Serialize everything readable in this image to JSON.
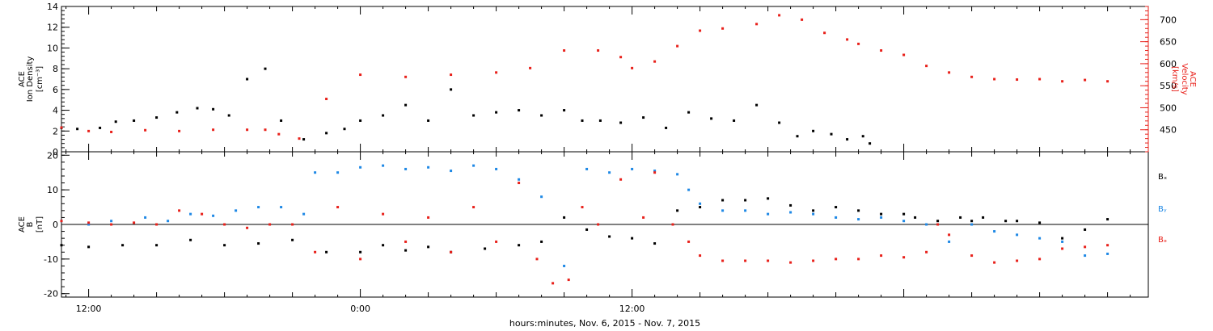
{
  "colors": {
    "black": "#000000",
    "red": "#e8201a",
    "blue": "#1e88e5"
  },
  "x_axis": {
    "caption": "hours:minutes, Nov.  6, 2015 - Nov.  7, 2015",
    "tick_labels": [
      "12:00",
      "0:00",
      "12:00"
    ]
  },
  "chart_data": [
    {
      "type": "scatter",
      "x_unit": "hours from 2015-11-06 00:00",
      "xlim": [
        10.8,
        58.8
      ],
      "left_axis": {
        "label_lines": [
          "ACE",
          "Ion Density",
          "[cm⁻³]"
        ],
        "ylim": [
          0,
          14
        ],
        "ticks": [
          0,
          2,
          4,
          6,
          8,
          10,
          12,
          14
        ]
      },
      "right_axis": {
        "label_lines": [
          "ACE",
          "Velocity",
          "[km/s]"
        ],
        "ylim": [
          400,
          730
        ],
        "ticks": [
          450,
          500,
          550,
          600,
          650,
          700
        ]
      },
      "series": [
        {
          "name": "Ion Density",
          "axis": "left",
          "color": "#000000",
          "points": [
            [
              10.8,
              2.3
            ],
            [
              11.5,
              2.2
            ],
            [
              12.5,
              2.3
            ],
            [
              13.2,
              2.9
            ],
            [
              14.0,
              3.0
            ],
            [
              15.0,
              3.3
            ],
            [
              15.9,
              3.8
            ],
            [
              16.8,
              4.2
            ],
            [
              17.5,
              4.1
            ],
            [
              18.2,
              3.5
            ],
            [
              19.0,
              7.0
            ],
            [
              19.8,
              8.0
            ],
            [
              20.5,
              3.0
            ],
            [
              21.5,
              1.2
            ],
            [
              22.5,
              1.8
            ],
            [
              23.3,
              2.2
            ],
            [
              24.0,
              3.0
            ],
            [
              25.0,
              3.5
            ],
            [
              26.0,
              4.5
            ],
            [
              27.0,
              3.0
            ],
            [
              28.0,
              6.0
            ],
            [
              29.0,
              3.5
            ],
            [
              30.0,
              3.8
            ],
            [
              31.0,
              4.0
            ],
            [
              32.0,
              3.5
            ],
            [
              33.0,
              4.0
            ],
            [
              33.8,
              3.0
            ],
            [
              34.6,
              3.0
            ],
            [
              35.5,
              2.8
            ],
            [
              36.5,
              3.3
            ],
            [
              37.5,
              2.3
            ],
            [
              38.5,
              3.8
            ],
            [
              39.5,
              3.2
            ],
            [
              40.5,
              3.0
            ],
            [
              41.5,
              4.5
            ],
            [
              42.5,
              2.8
            ],
            [
              43.3,
              1.5
            ],
            [
              44.0,
              2.0
            ],
            [
              44.8,
              1.7
            ],
            [
              45.5,
              1.2
            ],
            [
              46.2,
              1.5
            ],
            [
              46.5,
              0.8
            ]
          ]
        },
        {
          "name": "Velocity",
          "axis": "right",
          "color": "#e8201a",
          "points": [
            [
              10.8,
              455
            ],
            [
              12.0,
              447
            ],
            [
              13.0,
              445
            ],
            [
              14.5,
              449
            ],
            [
              16.0,
              447
            ],
            [
              17.5,
              450
            ],
            [
              19.0,
              450
            ],
            [
              19.8,
              450
            ],
            [
              20.4,
              440
            ],
            [
              21.3,
              430
            ],
            [
              22.5,
              520
            ],
            [
              24.0,
              575
            ],
            [
              26.0,
              570
            ],
            [
              28.0,
              575
            ],
            [
              30.0,
              580
            ],
            [
              31.5,
              590
            ],
            [
              33.0,
              630
            ],
            [
              34.5,
              630
            ],
            [
              35.5,
              615
            ],
            [
              36.0,
              590
            ],
            [
              37.0,
              605
            ],
            [
              38.0,
              640
            ],
            [
              39.0,
              675
            ],
            [
              40.0,
              680
            ],
            [
              41.5,
              690
            ],
            [
              42.5,
              710
            ],
            [
              43.5,
              700
            ],
            [
              44.5,
              670
            ],
            [
              45.5,
              655
            ],
            [
              46.0,
              645
            ],
            [
              47.0,
              630
            ],
            [
              48.0,
              620
            ],
            [
              49.0,
              595
            ],
            [
              50.0,
              580
            ],
            [
              51.0,
              570
            ],
            [
              52.0,
              565
            ],
            [
              53.0,
              564
            ],
            [
              54.0,
              565
            ],
            [
              55.0,
              560
            ],
            [
              56.0,
              563
            ],
            [
              57.0,
              560
            ]
          ]
        }
      ]
    },
    {
      "type": "scatter",
      "x_unit": "hours from 2015-11-06 00:00",
      "xlim": [
        10.8,
        58.8
      ],
      "left_axis": {
        "label_lines": [
          "ACE",
          "B",
          "[nT]"
        ],
        "ylim": [
          -21,
          21
        ],
        "ticks": [
          -20,
          -10,
          0,
          10,
          20
        ]
      },
      "series": [
        {
          "name": "Bx",
          "axis": "left",
          "color": "#000000",
          "points": [
            [
              10.8,
              -6.0
            ],
            [
              12.0,
              -6.5
            ],
            [
              13.5,
              -6.0
            ],
            [
              15.0,
              -6.0
            ],
            [
              16.5,
              -4.5
            ],
            [
              18.0,
              -6.0
            ],
            [
              19.5,
              -5.5
            ],
            [
              21.0,
              -4.5
            ],
            [
              22.5,
              -8.0
            ],
            [
              24.0,
              -8.0
            ],
            [
              25.0,
              -6.0
            ],
            [
              26.0,
              -7.5
            ],
            [
              27.0,
              -6.5
            ],
            [
              28.0,
              -8.0
            ],
            [
              29.5,
              -7.0
            ],
            [
              31.0,
              -6.0
            ],
            [
              32.0,
              -5.0
            ],
            [
              33.0,
              2.0
            ],
            [
              34.0,
              -1.5
            ],
            [
              35.0,
              -3.5
            ],
            [
              36.0,
              -4.0
            ],
            [
              37.0,
              -5.5
            ],
            [
              38.0,
              4.0
            ],
            [
              39.0,
              5.0
            ],
            [
              40.0,
              7.0
            ],
            [
              41.0,
              7.0
            ],
            [
              42.0,
              7.5
            ],
            [
              43.0,
              5.5
            ],
            [
              44.0,
              4.0
            ],
            [
              45.0,
              5.0
            ],
            [
              46.0,
              4.0
            ],
            [
              47.0,
              3.0
            ],
            [
              48.0,
              3.0
            ],
            [
              48.5,
              2.0
            ],
            [
              49.5,
              1.0
            ],
            [
              50.5,
              2.0
            ],
            [
              51.0,
              1.0
            ],
            [
              51.5,
              2.0
            ],
            [
              52.5,
              1.0
            ],
            [
              53.0,
              1.0
            ],
            [
              54.0,
              0.5
            ],
            [
              55.0,
              -4.0
            ],
            [
              56.0,
              -1.5
            ],
            [
              57.0,
              1.5
            ]
          ]
        },
        {
          "name": "By",
          "axis": "left",
          "color": "#1e88e5",
          "points": [
            [
              10.8,
              1.0
            ],
            [
              12.0,
              0.0
            ],
            [
              13.0,
              1.0
            ],
            [
              14.5,
              2.0
            ],
            [
              15.5,
              1.0
            ],
            [
              16.5,
              3.0
            ],
            [
              17.5,
              2.5
            ],
            [
              18.5,
              4.0
            ],
            [
              19.5,
              5.0
            ],
            [
              20.5,
              5.0
            ],
            [
              21.5,
              3.0
            ],
            [
              22.0,
              15.0
            ],
            [
              23.0,
              15.0
            ],
            [
              24.0,
              16.5
            ],
            [
              25.0,
              17.0
            ],
            [
              26.0,
              16.0
            ],
            [
              27.0,
              16.5
            ],
            [
              28.0,
              15.5
            ],
            [
              29.0,
              17.0
            ],
            [
              30.0,
              16.0
            ],
            [
              31.0,
              13.0
            ],
            [
              32.0,
              8.0
            ],
            [
              33.0,
              -12.0
            ],
            [
              34.0,
              16.0
            ],
            [
              35.0,
              15.0
            ],
            [
              36.0,
              16.0
            ],
            [
              37.0,
              15.5
            ],
            [
              38.0,
              14.5
            ],
            [
              38.5,
              10.0
            ],
            [
              39.0,
              6.0
            ],
            [
              40.0,
              4.0
            ],
            [
              41.0,
              4.0
            ],
            [
              42.0,
              3.0
            ],
            [
              43.0,
              3.5
            ],
            [
              44.0,
              3.0
            ],
            [
              45.0,
              2.0
            ],
            [
              46.0,
              1.5
            ],
            [
              47.0,
              2.0
            ],
            [
              48.0,
              1.0
            ],
            [
              49.0,
              0.0
            ],
            [
              50.0,
              -5.0
            ],
            [
              51.0,
              0.0
            ],
            [
              52.0,
              -2.0
            ],
            [
              53.0,
              -3.0
            ],
            [
              54.0,
              -4.0
            ],
            [
              55.0,
              -5.0
            ],
            [
              56.0,
              -9.0
            ],
            [
              57.0,
              -8.5
            ]
          ]
        },
        {
          "name": "Bz",
          "axis": "left",
          "color": "#e8201a",
          "points": [
            [
              10.8,
              1.0
            ],
            [
              12.0,
              0.5
            ],
            [
              13.0,
              0.0
            ],
            [
              14.0,
              0.5
            ],
            [
              15.0,
              0.0
            ],
            [
              16.0,
              4.0
            ],
            [
              17.0,
              3.0
            ],
            [
              18.0,
              0.0
            ],
            [
              19.0,
              -1.0
            ],
            [
              20.0,
              0.0
            ],
            [
              21.0,
              0.0
            ],
            [
              22.0,
              -8.0
            ],
            [
              23.0,
              5.0
            ],
            [
              24.0,
              -10.0
            ],
            [
              25.0,
              3.0
            ],
            [
              26.0,
              -5.0
            ],
            [
              27.0,
              2.0
            ],
            [
              28.0,
              -8.0
            ],
            [
              29.0,
              5.0
            ],
            [
              30.0,
              -5.0
            ],
            [
              31.0,
              12.0
            ],
            [
              31.8,
              -10.0
            ],
            [
              32.5,
              -17.0
            ],
            [
              33.2,
              -16.0
            ],
            [
              33.8,
              5.0
            ],
            [
              34.5,
              0.0
            ],
            [
              35.5,
              13.0
            ],
            [
              36.5,
              2.0
            ],
            [
              37.0,
              15.0
            ],
            [
              37.8,
              0.0
            ],
            [
              38.5,
              -5.0
            ],
            [
              39.0,
              -9.0
            ],
            [
              40.0,
              -10.5
            ],
            [
              41.0,
              -10.5
            ],
            [
              42.0,
              -10.5
            ],
            [
              43.0,
              -11.0
            ],
            [
              44.0,
              -10.5
            ],
            [
              45.0,
              -10.0
            ],
            [
              46.0,
              -10.0
            ],
            [
              47.0,
              -9.0
            ],
            [
              48.0,
              -9.5
            ],
            [
              49.0,
              -8.0
            ],
            [
              49.5,
              0.0
            ],
            [
              50.0,
              -3.0
            ],
            [
              51.0,
              -9.0
            ],
            [
              52.0,
              -11.0
            ],
            [
              53.0,
              -10.5
            ],
            [
              54.0,
              -10.0
            ],
            [
              55.0,
              -7.0
            ],
            [
              56.0,
              -6.5
            ],
            [
              57.0,
              -6.0
            ]
          ]
        }
      ],
      "legend": [
        "Bₓ",
        "Bᵧ",
        "Bₔ"
      ]
    }
  ]
}
